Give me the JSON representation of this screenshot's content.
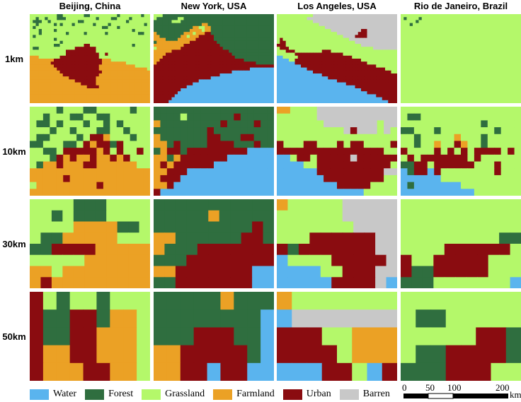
{
  "colors": {
    "W": "#5ab4ee",
    "F": "#2f6e3f",
    "G": "#b4f86a",
    "A": "#eba125",
    "U": "#8a0c10",
    "B": "#c8c8c8"
  },
  "columns": [
    "Beijing, China",
    "New York, USA",
    "Los Angeles, USA",
    "Rio de Janeiro, Brazil"
  ],
  "rows": [
    "1km",
    "10km",
    "30km",
    "50km"
  ],
  "legend": [
    {
      "key": "W",
      "label": "Water"
    },
    {
      "key": "F",
      "label": "Forest"
    },
    {
      "key": "G",
      "label": "Grassland"
    },
    {
      "key": "A",
      "label": "Farmland"
    },
    {
      "key": "U",
      "label": "Urban"
    },
    {
      "key": "B",
      "label": "Barren"
    }
  ],
  "scale": {
    "ticks": [
      "0",
      "50",
      "100",
      "200"
    ],
    "unit": "km"
  },
  "maps": {
    "50km": [
      [
        "UGFGGFGGG",
        "UFFUUFAAG",
        "UFFUUAAAG",
        "UAAUUAAAG",
        "UAAAUUAAG"
      ],
      [
        "FFFFFAFFF",
        "FFFFFFFFW",
        "FFFUUUFFW",
        "AAUUUUUFW",
        "AAUUWUUWW"
      ],
      [
        "AGGGGGGG",
        "WBBBBBBB",
        "UUUGGAAA",
        "UUUUGAAA",
        "WWWUUGWU"
      ],
      [
        "GGGGGGGG",
        "GFFGGGGG",
        "GGGGGUUF",
        "GFFUUUUF",
        "FFFUUUGG"
      ]
    ],
    "30km": [
      [
        "GGGGFFFGGGG",
        "GGFGFFFGGGG",
        "GGGGAAAAFFG",
        "GFFAAAAAGGG",
        "FFUUUUAAAAA",
        "GGGGGAAAAAA",
        "AAGAAAAAAAA",
        "AUAAAAAAAAA"
      ],
      [
        "FFFFFFFFFFF",
        "FFFFFAFFFFF",
        "FFFFFFFFFUF",
        "AAFFFFFFUUF",
        "AFFFUUUUUUU",
        "FFFUUUUUUUU",
        "AAUUUUUUUWW",
        "FFUUUUUUUWW"
      ],
      [
        "AGGGGGBBBBB",
        "GGGGGGBBBBB",
        "GGGGGGGBBBB",
        "GGGUUUUUUBB",
        "UFUUUUUUUBB",
        "WGGGGUUUUUB",
        "WWWWGGUUUBB",
        "WWWWWUUUUBW"
      ],
      [
        "GGGGGGGGGGG",
        "GGGGGGGGGGG",
        "GGGGGGGGGGG",
        "GGGGGGGGGFF",
        "GGGGUUUUUUG",
        "UGGUUUUUGGG",
        "UFFUUUUUGGG",
        "FFFGGGGGGGW"
      ]
    ],
    "10km": [
      [
        "GGGGFGGGFFGGGGGFGG",
        "GGFGGGFFGGFFGGGGGG",
        "GFFGFGGGFGGFGFGGGG",
        "GGGFGGFGGGFFGGFGGG",
        "GFFGGGGFGUUAGGGFGG",
        "FFGGGFFGUAUUFUGGGG",
        "GGFFGUUUUUAUGUGGUG",
        "GGGFUAUAAUAAUAUGGG",
        "GFAAUAAAUUAAAAAAGG",
        "AAAAAAAAAAAAAAAAAA",
        "AAAAAUAAAAAAAAAAAA",
        "GAAAAAAAAAUAAAAAAA",
        "AAAAAAAAAAAAAAAAAA"
      ],
      [
        "FFFFFFFFFFFFFFFFFF",
        "FFFFGFFFFFFFUFFFFF",
        "AFFFFFFFFFUFFFFUFF",
        "FFFFFFFFUFFFFFFFFF",
        "AFFFFFFFUUFFFUUFFF",
        "AAFUFFFFUUUUFFFUFF",
        "FAUUFUUUUUUUUUWWWW",
        "AAFAUUUUUUUWWWWWWW",
        "AUAUUUUUUWWWWWWWWW",
        "AAUUUWWWWWWWWWWWWW",
        "AUUUWWWWWWWWWWWWWW",
        "AAUWWWWWWWWWWWWWWW",
        "UWWWWWWWWWWWWWWWWW"
      ],
      [
        "AAGGGGBBBBBBBBBBBB",
        "GGGGGGBBBBBBBBBBBB",
        "GGGGGGGBBBBBBBBGBB",
        "GGGGGGGGGGBUBBBGBG",
        "GGGGGGGGGGGGGGGGGG",
        "UGGGUUGGGUGUUGGGGU",
        "UUUUUUUUUUUUUUUUGG",
        "WWGUUGUUUUUBUUUUUU",
        "WWWWGGUUUUUUUUUUUG",
        "WWWWWWUUUUUUUUUUBB",
        "WWWWWWWUUUUUUUUUGG",
        "WWWWWWWWWUUUUUGGGG",
        "WWWWWWWWWWWWWGGGGG"
      ],
      [
        "GGGGGGGGGGGGGGGGGG",
        "GFFGGGGGGGGGGGGGGG",
        "GGGGGGGGGGGGFGGGGG",
        "FFGGGFGGGGGGGGFGGG",
        "GGFGGGGGAGGGFGGGGG",
        "GGFGGAGGUAGGFGGGGG",
        "UGGGGUGUGUGUUUUGUG",
        "GUGUUUUUUUGUGGGGGG",
        "FFUUGUUUUUUGGGUGGG",
        "WFUUWUGGGGGGGGUGGG",
        "WWWWWWGGGGGGGGGGGG",
        "WFWWWWWWWGGGGGGGGG",
        "WWWWWWWWWWWGGGGGGG"
      ]
    ],
    "1km": [
      [
        "GGGGGGGGGFFGGGGGGGFFGGGGGGGGGFGGGGGGGFGG",
        "GGFGGFGGGFFFGGGGGGGGGGFGGGGFFGGGGFGGGGGG",
        "GFFFGGFGGGGGGGGGFFGGGGGGGGGGGGGGFGGGGGGG",
        "GGFGGGGGFGFGGGFGGGGGGFGGGGFGGGGGGGGGGGFG",
        "GFGGGGGGGGGGGGGGGGGGGGGGFFGGGFGGGGGGGGGG",
        "GGGFGGGGFGGGGGGGGGGGGGGGGGGGGGGGGGFGGGGG",
        "GGGFGGGGGGGGFGGGGGFGGGGGGFGGGGGGGGGGFFGG",
        "GFGGGGGGGGGGGGGGGGGGGGGGGGGGGGGGGGGGGGGG",
        "GGGGGGGGFGGGGGGGGGGGGGGGGGGGGGGGGGGGGGGG",
        "GGGGGGGGGGFGGGGGGGGGGGGGGGGGGGGGGGGGGGGG",
        "GGGGGGGGFFGGGGGGGGUUGGGGGGGGGGGGGGFGGGGG",
        "GFFGGGGGGGGGGGGUUUUUUUGGGGGGGGGGGGGGGGGG",
        "GGGGGGGGGGGGUUUUUUUUUUGGGGGGGGGGGGGGGGGG",
        "GGGGGGGGGGGGUUUUUUUUUUUGGUGGGGGGGGGGGGGG",
        "AAAGGGGGGGUUUUUUUUUUUUUGGGGGGGGGGGGGGGGG",
        "AAAAAAAAUUUUUUUUUUUUUUUUAAAGGGGGGGGGGGGG",
        "AAAAAAAUUUUUUUUUUUUUUUUUAAAAAAAAGGGGGGGG",
        "AAAAAAAAUUUUUUUUUUUUUUUAAAAAAAAAAAAGGGGG",
        "AAAAAAAAAUUUUUUUUUUUUUUAAAAAAAAAAAAAAAAG",
        "AAAAAAAAAAUUUUUUUUUUUUUUAAAAAAAAAAAAAAAA",
        "AAAAAAAAAAAUUUUUUUUUUUUAAAAAAAAAAAAAAAAA",
        "AAAAAAAAAAAAAUUUUUUUUUAAAAAAAAAAAAAAAAAA",
        "AAAAAAAAAAAAAAAUUUUUUUAAAAAAAAAAAAAAAAAA",
        "AAAAAAAAAAAAAAAAAUUUUUAAAAAAAAAAAAAAAAAA",
        "AAAAAAAAAAAAAAAAAAAUUUUAAAAAAAAAAAAAAAAA",
        "AAAAAAAAAAAAAAAAAAAAAAAAAAAAAAAAAAAAAAAA",
        "AAAAAAAAAAAAAAAAAAAAAAAAAAAAAAAAAAAAAAAA",
        "AAAAAAAAAAAAAAAAAAAAAAAAAAAAAAAAAAAAAAAA",
        "AAAAAAAAAAAAAAAAAAAAAAAAAAAAAAAAAAAAAAAA",
        "AAAAAAAAAAAAAAAAAAAAAAAAAAAAAAAAAAAAAAAA"
      ],
      [
        "GGGFFFFFFFFFFFFFFFFFFFFFFFFFFFFFFFFFFFFF",
        "GFFFFFFFGGFFFFFFFFFFFFFFFFFFFFFFFFFFFFFF",
        "FFFFFFGGGFFFFFFFFFFFFFFFFFFFFFFFFFFFFFFF",
        "FFFFFFFFFFFFFFFFAAFFFFFFFFFFFFFFFFFFFFFF",
        "FFFFFFFFFFFFFAAGGAAFFFFFFFFFFFFFFFFFFFFF",
        "FFFFFFFFFFFFAAAAGAAFFFFFFFFFFFFFFFFFFFFF",
        "AFFFFFFFFFAAAGAAAUUFFFFFFFFFFFFFFFFFFFFF",
        "AAFFFFFFFAAGAAAUUUUUFFFFFFFFFFFFFFFFFFFF",
        "AAAAFFFFAAAAAAUUUUUUFFFFFFFFFFFFFFFFFFFF",
        "FAAAAAAAAAAAUUUUUUUUUFFFFFFFFFFFFFFFFFFF",
        "AAAAAAAAAAUUUUUUUUUUUUFFFFFFFFFFFFFFFFFF",
        "GAAAAAAAAUUUUUUUUUUUUUUFFFFFFFFFFFFFFFFF",
        "AAAAAAUUUUUUUUUUUUUUUUUUUFFFFFFFFFFFFFFF",
        "AAAAUUUUUUUUUUUUUUUUUUUUUUFFFFFFFFFFFFFF",
        "AAAUUUUUUUUUUUUUUUUUUUUUUUUFFFFFFFFFFFFF",
        "AAUUUUUUUUUUUUUUUUUUUUUUUUUUUUFFFFFFFFFF",
        "AUUUUUUUUUUUUUUUUUUUUUUUUUUUUUUUUUFFFFFF",
        "UUUUUUUUUUUUUUUUUUUUUUUUUUUUUUUUUUUUUUUU",
        "UUUUUUUUUUUUUUUUUUUUUUUUUUUUUUUUWWWWWWWW",
        "UUUUUUUUUUUUUUUUUUUUUUUUUUWWWWWWWWWWWWWW",
        "UUUUUUUUUUUUUUUUUUUUUUWWWWWWWWWWWWWWWWWW",
        "UUUUUUUUUUUUUUUUUUUWWWWWWWWWWWWWWWWWWWWW",
        "UUUUUUUUUUUUUUUWWWWWWWWWWWWWWWWWWWWWWWWW",
        "UUUUUUUUUUUUUWWWWWWWWWWWWWWWWWWWWWWWWWWW",
        "UUUUUUUUUUUWWWWWWWWWWWWWWWWWWWWWWWWWWWWW",
        "UUUUUUUUUWWWWWWWWWWWWWWWWWWWWWWWWWWWWWWW",
        "UUUUUUUUWWWWWWWWWWWWWWWWWWWWWWWWWWWWWWWW",
        "UUUUUUUWWWWWWWWWWWWWWWWWWWWWWWWWWWWWWWWW",
        "UUUUUUWWWWWWWWWWWWWWWWWWWWWWWWWWWWWWWWWW",
        "UUUUUWWWWWWWWWWWWWWWWWWWWWWWWWWWWWWWWWWW"
      ],
      [
        "GGGGGGGGGGGGBBBBBBBBBBBBBBBBBBBBBBBBBBBB",
        "GGGGGGGGGGBBBBBBBBBBBBBBBBBBBBBBBBBBBBBB",
        "GGGGGGGGGGGGBBBBBBBBBBBBBBBBBBBBBBBBBBBB",
        "GGGGGGGGGGGGGGBBBBBBBBBBBBBBBBBBBBBBBBBB",
        "GGGGGGGGGGGGGGGGBBBBBBBBBBBBBBBBBBBBBBBB",
        "GGGGGGGGGGGGGGGGGGBBBBBBBBBBUUBBBBBBBBBB",
        "GGGGGGGGGGGGGGGGGGGGBBBBBBBUUUBBBBBBBBBB",
        "GGGGGGGGGGGGGGGGGGGGGGBBBBUUUUBBBBBBBBBB",
        "GUGGGGGGGGGGGGGGGGGGGGGGBBBBBBBBBBBBBBBB",
        "GUUGGGGGGGGGGGGGGGGGGGGGGGBBBBBBBBBBBBBB",
        "UUUGGGGGGGGGGGGGGGGGGGGGGGGGBBBBBBBBBBBB",
        "GUUUGGGGGGGGGGGGGGGGGGGGGGGGGGGGBBBBBBBB",
        "GGGUUUGGGGGGGGGUUUGGGGGGGGGGGGGGGGGGGGGG",
        "GGGGGGUUUUUUUUUUUUUUUUGGGGGGGGGGGGGGGGGG",
        "WWGGGGGUUUUUUUUUUUUUUUUUUGGGGGGGGGGGGGGG",
        "WWWWGGUUUUUUUUUUUUUUUUUUUUUUGGGGGGGGGGGG",
        "WWWWWWUUUUUUUUUUUUUUUUUUUUUUUUGGGGGGGGGG",
        "WWWWWWWWUUUUUUUUUUUUUUUUUUUUUUUUUGGGGGGG",
        "WWWWWWWWWWUUUUUUUUUUUUUUUUUUUUUUUUUUGGGG",
        "WWWWWWWWWWWWUUUUUUUUUUUUUUUUUUUUUUUUUUGG",
        "WWWWWWWWWWWWWWWUUUUUUUUUUUUUUUUUUUUUUUUU",
        "WWWWWWWWWWWWWWWWWUUUUUUUUUUUUUUUUUUUUUUU",
        "WWWWWWWWWWWWWWWWWWWWUUUUUUUUUUUUUUUUUUUU",
        "WWWWWWWWWWWWWWWWWWWWWWWUUUUUUUUUUUUUUUUU",
        "WWWWWWWWWWWWWWWWWWWWWWWWWWUUUUUUUUUUUUUU",
        "WWWWWWWWWWWWWWWWWWWWWWWWWWWWUUUUUUUUUUUU",
        "WWWWWWWWWWWWWWWWWWWWWWWWWWWWWWUUUUUUUUUU",
        "WWWWWWWWWWWWWWWWWWWWWWWWWWWWWWWWWUUUUUUU",
        "WWWWWWWWWWWWWWWWWWWWWWWWWWWWWWWWWWWUUUUU",
        "WWWWWWWWWWWWWWWWWWWWWWWWWWWWWWWWWWWWWUUU"
      ],
      [
        "GGGGGGGGGGGGGGGGGGGGGGGGGGGGGGGGGGGGGGGG",
        "GFGGGGFGGGGGGGGGGGGGGGGGGGGGGGGGGGGGGGGG",
        "GGGGGFGGGGGGGGGGGGGGGGGGGGGGGGGGGGGGGGGG",
        "GGGFGGGGGGGGGGGGGGGGGGGGGGGGGGGGGGGGGGGG",
        "GGGGGGGGGGGGGGGGGGGGGGGGGGGGGGGGGGGGGGGG",
        "GGGGGGGGGGGGGGGGGGGGGGGGGGGGGGGGGGGGGGGG",
        "GGGGGGGGGGGGGGGGGGGGGGGGGGGGGGGGGGGGGGGG",
        "GGGGGGGGGGGGGGGGGGGGGGGGGGGGGGGGGGGGGGGG",
        "GGGGGGGGGGGGGGGGGGGGGGGGGGGGGGGGGGGGGGGG",
        "GGGGGGGGGGGGGGGGGGGGGGGGGGGGGGGGGGGGGGGG",
        "GGGGGGGGGGGGGGGGGGGGGGGGGGGGGGGGGGGGGGGG",
        "GGGGGGGGGGGGGGGGGGGGGGGGGGGGGGGGGGGGGGGG",
        "GGGGGGGGGGGGGGGGGGGGGGGGGGGGGGGGGGGGGGGG",
        "GGGGGGGGGGGGGGGGGGGGGGGGGGGGGGGGGGGGGGGG",
        "GGGGGGGGGGGGGGGGGGGGGGGGGGGGGGGGGGGGGGGG",
        "GGGGGGGGGGGGGGGGGGGGGGGGGGGGGGGGGGGGGGGG",
        "GGGGGGGGGGGGGGGGGGGGGGGGGGGGGGGGGGGGGGGG",
        "GGGGGGGGGGGGGGGGGGGGGGGGGGGGGGGGGGGGGGGG",
        "GGGGGGGGGGGGGGGGGGGGGGGGGGGGGGGGGGGGGGGG",
        "GGGGGGGGGGGGGGGGGGGGGGGGGGGGGGGGGGGGGGGG",
        "GGGGGGGGGGGGGGGGGGGGGGGGGGGGGGGGGGGGGGGG",
        "GGGGGGGGGGGGGGGGGGGGGGGGGGGGGGGGGGGGGGGG",
        "GGGGGGGGGGGGGGGGGGGGGGGGGGGGGGGGGGGGGGGG",
        "GGGGGGGGGGGGGGGGGGGGGGGGGGGGGGGGGGGGGGGG",
        "GGGGGGGGGGGGGGGGGGGGGGGGGGGGGGGGGGGGGGGG",
        "GGGGGGGGGGGGGGGGGGGGGGGGGGGGGGGGGGGGGGGG",
        "GGGGGGGGGGGGGGGGGGGGGGGGGGGGGGGGGGGGGGGG",
        "GGGGGGGGGGGGGGGGGGGGGGGGGGGGGGGGGGGGGGGG",
        "GGGGGGGGGGGGGGGGGGGGGGGGGGGGGGGGGGGGGGGG",
        "GGGGGGGGGGGGGGGGGGGGGGGGGGGGGGGGGGGGGGGG"
      ]
    ]
  }
}
